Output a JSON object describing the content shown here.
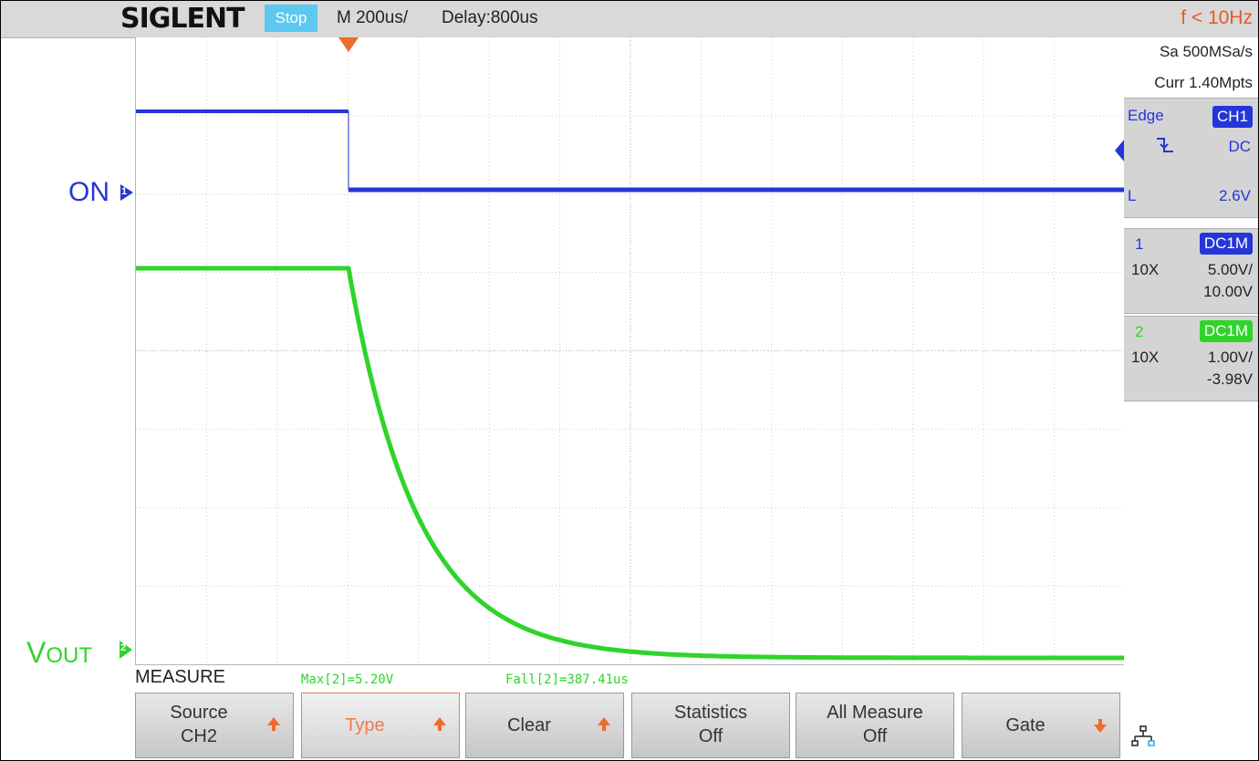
{
  "header": {
    "brand": "SIGLENT",
    "run_status": "Stop",
    "timebase": "M 200us/",
    "delay": "Delay:800us",
    "frequency": "f < 10Hz"
  },
  "channels": {
    "ch1_label": "ON",
    "ch2_label_main": "V",
    "ch2_label_sub": "OUT",
    "ch1_marker": "1",
    "ch2_marker": "2"
  },
  "acquisition": {
    "sample_rate": "Sa 500MSa/s",
    "memory": "Curr 1.40Mpts"
  },
  "trigger": {
    "type": "Edge",
    "source": "CH1",
    "coupling": "DC",
    "level_label": "L",
    "level": "2.6V"
  },
  "ch1_info": {
    "number": "1",
    "coupling": "DC1M",
    "probe": "10X",
    "scale": "5.00V/",
    "offset": "10.00V"
  },
  "ch2_info": {
    "number": "2",
    "coupling": "DC1M",
    "probe": "10X",
    "scale": "1.00V/",
    "offset": "-3.98V"
  },
  "measure": {
    "title": "MEASURE",
    "max": "Max[2]=5.20V",
    "fall": "Fall[2]=387.41us"
  },
  "softkeys": [
    {
      "line1": "Source",
      "line2": "CH2"
    },
    {
      "line1": "Type"
    },
    {
      "line1": "Clear"
    },
    {
      "line1": "Statistics",
      "line2": "Off"
    },
    {
      "line1": "All Measure",
      "line2": "Off"
    },
    {
      "line1": "Gate"
    }
  ],
  "colors": {
    "ch1": "#2436d8",
    "ch2": "#2fd42a",
    "accent": "#f06a2a",
    "status": "#5cc8ef"
  },
  "icons": {
    "trigger_edge": "falling-edge-icon",
    "network": "network-icon"
  }
}
